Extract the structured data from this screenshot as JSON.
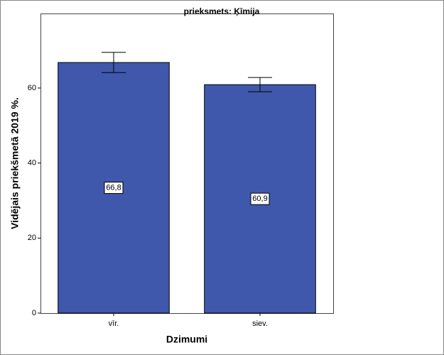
{
  "chart_data": {
    "type": "bar",
    "title": "prieksmets: Ķīmija",
    "x_label": "Dzimumi",
    "y_label": "Vidējais priekšmetā 2019 %.",
    "categories": [
      "vīr.",
      "siev."
    ],
    "values": [
      66.8,
      60.9
    ],
    "value_labels": [
      "66,8",
      "60,9"
    ],
    "errors": [
      2.7,
      1.9
    ],
    "color": "#3f58ab",
    "ylim": [
      0,
      80
    ],
    "yticks": [
      0,
      20,
      40,
      60
    ],
    "grid": false
  }
}
